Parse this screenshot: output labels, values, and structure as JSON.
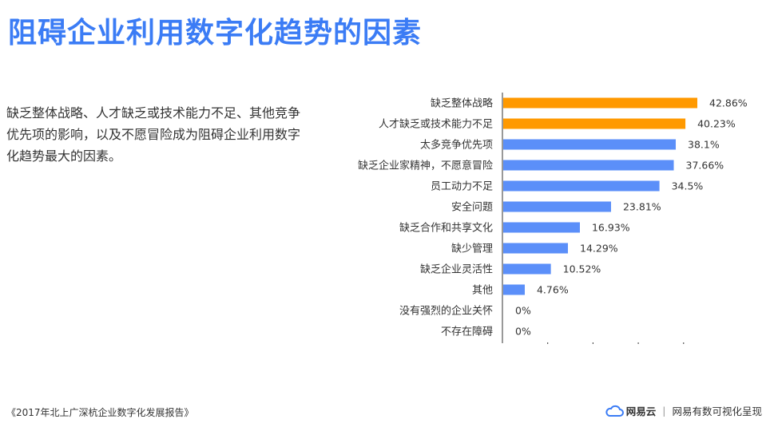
{
  "header": {
    "title": "阻碍企业利用数字化趋势的因素"
  },
  "summary": {
    "text": "缺乏整体战略、人才缺乏或技术能力不足、其他竞争优先项的影响，以及不愿冒险成为阻碍企业利用数字化趋势最大的因素。"
  },
  "chart_data": {
    "type": "bar",
    "orientation": "horizontal",
    "categories": [
      "缺乏整体战略",
      "人才缺乏或技术能力不足",
      "太多竞争优先项",
      "缺乏企业家精神，不愿意冒险",
      "员工动力不足",
      "安全问题",
      "缺乏合作和共享文化",
      "缺少管理",
      "缺乏企业灵活性",
      "其他",
      "没有强烈的企业关怀",
      "不存在障碍"
    ],
    "values": [
      42.86,
      40.23,
      38.1,
      37.66,
      34.5,
      23.81,
      16.93,
      14.29,
      10.52,
      4.76,
      0,
      0
    ],
    "value_labels": [
      "42.86%",
      "40.23%",
      "38.1%",
      "37.66%",
      "34.5%",
      "23.81%",
      "16.93%",
      "14.29%",
      "10.52%",
      "4.76%",
      "0%",
      "0%"
    ],
    "highlight_count": 2,
    "colors": {
      "highlight": "#ff9900",
      "normal": "#5b8ff9",
      "axis": "#333333"
    },
    "xlim": [
      0,
      50
    ],
    "grid": false,
    "legend": "none"
  },
  "footer": {
    "source": "《2017年北上广深杭企业数字化发展报告》",
    "brand": "网易云",
    "separator": "|",
    "tagline": "网易有数可视化呈现",
    "icon": "cloud-icon"
  }
}
